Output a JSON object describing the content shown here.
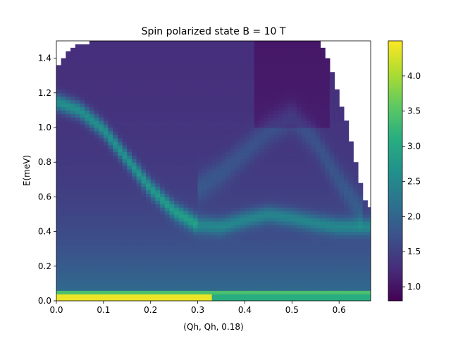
{
  "chart_data": {
    "type": "heatmap",
    "title": "Spin polarized state B = 10 T",
    "xlabel": "(Qh, Qh, 0.18)",
    "ylabel": "E(meV)",
    "xlim": [
      0.0,
      0.667
    ],
    "ylim": [
      0.0,
      1.5
    ],
    "x_ticks": [
      0.0,
      0.1,
      0.2,
      0.3,
      0.4,
      0.5,
      0.6
    ],
    "x_tick_labels": [
      "0.0",
      "0.1",
      "0.2",
      "0.3",
      "0.4",
      "0.5",
      "0.6"
    ],
    "y_ticks": [
      0.0,
      0.2,
      0.4,
      0.6,
      0.8,
      1.0,
      1.2,
      1.4
    ],
    "y_tick_labels": [
      "0.0",
      "0.2",
      "0.4",
      "0.6",
      "0.8",
      "1.0",
      "1.2",
      "1.4"
    ],
    "colormap": "viridis",
    "color_range": [
      0.8,
      4.5
    ],
    "colorbar_ticks": [
      1.0,
      1.5,
      2.0,
      2.5,
      3.0,
      3.5,
      4.0
    ],
    "colorbar_tick_labels": [
      "1.0",
      "1.5",
      "2.0",
      "2.5",
      "3.0",
      "3.5",
      "4.0"
    ],
    "grid": false,
    "q_step": 0.01,
    "e_step": 0.02,
    "dispersion": [
      {
        "q": 0.0,
        "e": 1.15
      },
      {
        "q": 0.05,
        "e": 1.1
      },
      {
        "q": 0.1,
        "e": 0.99
      },
      {
        "q": 0.15,
        "e": 0.82
      },
      {
        "q": 0.2,
        "e": 0.65
      },
      {
        "q": 0.25,
        "e": 0.52
      },
      {
        "q": 0.3,
        "e": 0.44
      },
      {
        "q": 0.35,
        "e": 0.43
      },
      {
        "q": 0.4,
        "e": 0.47
      },
      {
        "q": 0.45,
        "e": 0.5
      },
      {
        "q": 0.5,
        "e": 0.48
      },
      {
        "q": 0.55,
        "e": 0.45
      },
      {
        "q": 0.6,
        "e": 0.43
      },
      {
        "q": 0.667,
        "e": 0.43
      }
    ],
    "secondary_branch": [
      {
        "q": 0.3,
        "e": 0.65
      },
      {
        "q": 0.35,
        "e": 0.74
      },
      {
        "q": 0.4,
        "e": 0.86
      },
      {
        "q": 0.45,
        "e": 0.98
      },
      {
        "q": 0.5,
        "e": 1.06
      },
      {
        "q": 0.55,
        "e": 0.92
      },
      {
        "q": 0.6,
        "e": 0.7
      },
      {
        "q": 0.65,
        "e": 0.5
      }
    ],
    "high_energy_limit": [
      {
        "q": 0.0,
        "e": 1.32
      },
      {
        "q": 0.02,
        "e": 1.44
      },
      {
        "q": 0.05,
        "e": 1.48
      },
      {
        "q": 0.1,
        "e": 1.5
      },
      {
        "q": 0.56,
        "e": 1.5
      },
      {
        "q": 0.57,
        "e": 1.44
      },
      {
        "q": 0.6,
        "e": 1.18
      },
      {
        "q": 0.62,
        "e": 0.98
      },
      {
        "q": 0.64,
        "e": 0.74
      },
      {
        "q": 0.655,
        "e": 0.58
      },
      {
        "q": 0.667,
        "e": 0.52
      }
    ],
    "elastic_line": {
      "e_max": 0.04,
      "value": 4.4,
      "q_max": 0.33
    },
    "near_elastic": {
      "e": 0.05,
      "value": 3.4
    }
  }
}
